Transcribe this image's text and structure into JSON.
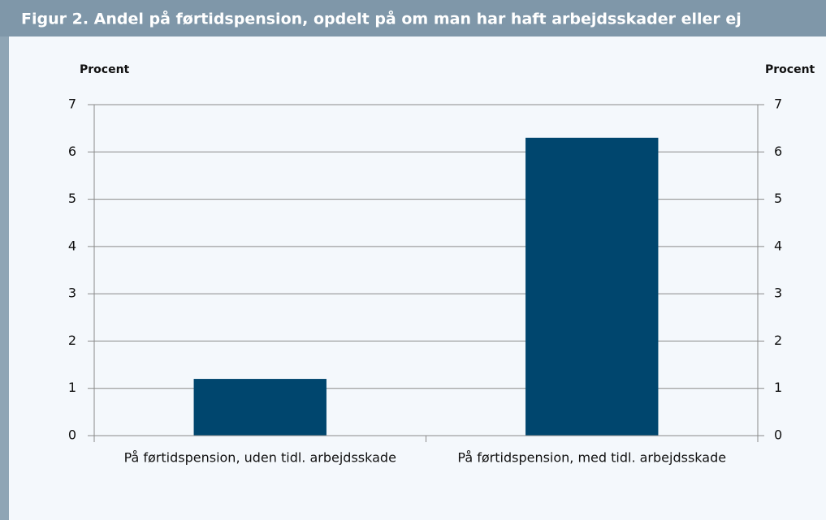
{
  "chart_data": {
    "type": "bar",
    "title": "Figur 2. Andel på førtidspension, opdelt på om man har haft arbejdsskader eller ej",
    "ylabel": "Procent",
    "y2label": "Procent",
    "categories": [
      "På førtidspension, uden tidl. arbejdsskade",
      "På førtidspension, med tidl. arbejdsskade"
    ],
    "values": [
      1.2,
      6.3
    ],
    "color": "#00466e",
    "ylim": [
      0,
      7
    ],
    "yticks": [
      0,
      1,
      2,
      3,
      4,
      5,
      6,
      7
    ],
    "y2lim": [
      0,
      7
    ],
    "y2ticks": [
      0,
      1,
      2,
      3,
      4,
      5,
      6,
      7
    ],
    "grid": true
  }
}
